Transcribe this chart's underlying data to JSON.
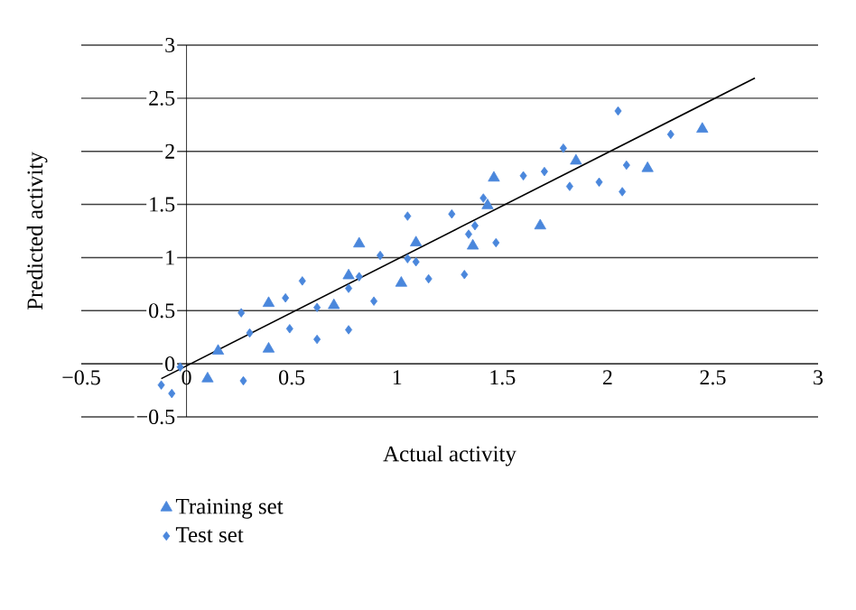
{
  "chart_data": {
    "type": "scatter",
    "xlabel": "Actual activity",
    "ylabel": "Predicted activity",
    "xlim": [
      -0.5,
      3
    ],
    "ylim": [
      -0.5,
      3
    ],
    "xticks": [
      {
        "value": -0.5,
        "label": "−0.5"
      },
      0,
      0.5,
      1,
      1.5,
      2,
      2.5,
      3
    ],
    "yticks": [
      {
        "value": -0.5,
        "label": "−0.5"
      },
      0,
      0.5,
      1,
      1.5,
      2,
      2.5,
      3
    ],
    "grid": "y",
    "legend": "bottom",
    "series": [
      {
        "name": "Training set",
        "color": "#4a87dc",
        "marker": "triangle",
        "x": [
          0.15,
          0.1,
          0.39,
          0.39,
          0.7,
          0.77,
          0.82,
          1.02,
          1.09,
          1.46,
          1.43,
          1.36,
          1.68,
          1.85,
          2.19,
          2.45
        ],
        "values": [
          0.12,
          -0.14,
          0.57,
          0.14,
          0.55,
          0.83,
          1.13,
          0.76,
          1.14,
          1.75,
          1.49,
          1.11,
          1.3,
          1.91,
          1.84,
          2.21
        ]
      },
      {
        "name": "Test set",
        "color": "#4a87dc",
        "marker": "diamond",
        "x": [
          -0.12,
          -0.07,
          -0.03,
          0.26,
          0.3,
          0.27,
          0.47,
          0.49,
          0.55,
          0.62,
          0.62,
          0.77,
          0.77,
          0.82,
          0.89,
          0.92,
          1.05,
          1.05,
          1.09,
          1.15,
          1.26,
          1.32,
          1.34,
          1.37,
          1.41,
          1.47,
          1.6,
          1.7,
          1.79,
          1.82,
          1.96,
          2.05,
          2.07,
          2.09,
          2.3
        ],
        "values": [
          -0.2,
          -0.28,
          -0.03,
          0.48,
          0.29,
          -0.16,
          0.62,
          0.33,
          0.78,
          0.23,
          0.53,
          0.71,
          0.32,
          0.82,
          0.59,
          1.02,
          1.39,
          0.99,
          0.96,
          0.8,
          1.41,
          0.84,
          1.22,
          1.3,
          1.56,
          1.14,
          1.77,
          1.81,
          2.03,
          1.67,
          1.71,
          2.38,
          1.62,
          1.87,
          2.16
        ]
      },
      {
        "type": "line",
        "color": "#000000",
        "marker": "none",
        "x": [
          -0.12,
          2.7
        ],
        "values": [
          -0.14,
          2.69
        ]
      }
    ]
  }
}
